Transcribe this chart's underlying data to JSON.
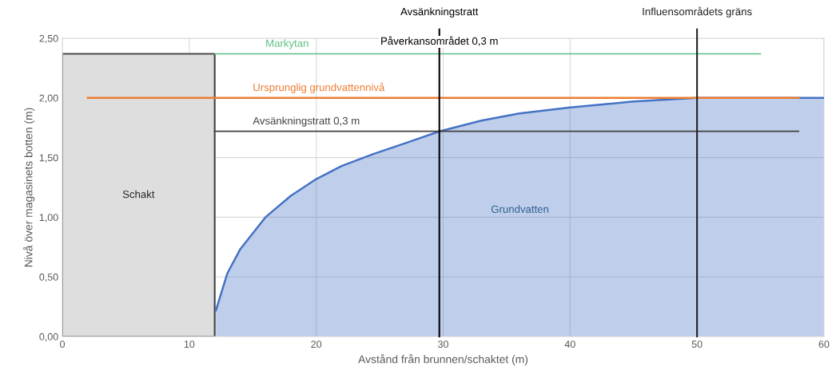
{
  "chart_data": {
    "type": "line",
    "xlabel": "Avstånd från brunnen/schaktet (m)",
    "ylabel": "Nivå över magasinets botten (m)",
    "xlim": [
      0,
      60
    ],
    "xticks": [
      0,
      10,
      20,
      30,
      40,
      50,
      60
    ],
    "ylim": [
      0,
      2.5
    ],
    "yticks": [
      {
        "value": 0,
        "label": "0,00"
      },
      {
        "value": 0.5,
        "label": "0,50"
      },
      {
        "value": 1,
        "label": "1,00"
      },
      {
        "value": 1.5,
        "label": "1,50"
      },
      {
        "value": 2,
        "label": "2,00"
      },
      {
        "value": 2.5,
        "label": "2,50"
      }
    ],
    "grid": true,
    "legend": false,
    "series": [
      {
        "name": "Schakt",
        "type": "area",
        "color": "#dedede",
        "x": [
          0,
          12
        ],
        "values": [
          2.37,
          2.37
        ]
      },
      {
        "name": "Grundvatten",
        "type": "area",
        "color": "#4472c4",
        "x": [
          12.1,
          13,
          14,
          16,
          18,
          20,
          22,
          24.5,
          27,
          29.7,
          33,
          36,
          40,
          45,
          50,
          60
        ],
        "values": [
          0.22,
          0.53,
          0.73,
          1.0,
          1.18,
          1.32,
          1.43,
          1.53,
          1.62,
          1.72,
          1.81,
          1.87,
          1.92,
          1.97,
          2.0,
          2.0
        ]
      },
      {
        "name": "Markytan",
        "color": "#5cbf84",
        "x": [
          12,
          55
        ],
        "values": [
          2.37,
          2.37
        ]
      },
      {
        "name": "Ursprunglig grundvattennivå",
        "color": "#ed7d31",
        "x": [
          2,
          58
        ],
        "values": [
          2.0,
          2.0
        ]
      },
      {
        "name": "Avsänkningstratt 0,3 m",
        "color": "#404040",
        "x": [
          12,
          58
        ],
        "values": [
          1.72,
          1.72
        ]
      }
    ],
    "ref_lines": [
      {
        "axis": "x",
        "value": 29.7,
        "label": "Avsänkningstratt",
        "color": "#000000"
      },
      {
        "axis": "x",
        "value": 50,
        "label": "Influensområdets gräns",
        "color": "#222222"
      }
    ],
    "annotations": [
      {
        "text": "Påverkansområdet 0,3 m",
        "x": 29.7,
        "y": 2.47
      }
    ]
  }
}
